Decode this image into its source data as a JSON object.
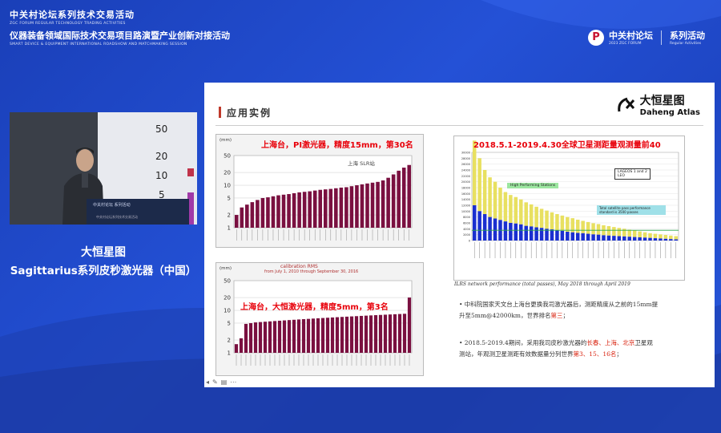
{
  "header": {
    "line1": "中关村论坛系列技术交易活动",
    "line1_en": "ZGC FORUM REGULAR TECHNOLOGY TRADING ACTIVITIES",
    "line2": "仪器装备领域国际技术交易项目路演暨产业创新对接活动",
    "line2_en": "SMART DEVICE & EQUIPMENT INTERNATIONAL ROADSHOW AND MATCHMAKING SESSION"
  },
  "brand": {
    "logo": "P",
    "name": "中关村论坛",
    "name_en": "2023 ZGC FORUM",
    "series": "系列活动",
    "series_en": "Regular Activities"
  },
  "video": {
    "wall_numbers": [
      "50",
      "20",
      "10",
      "5"
    ],
    "podium_text": "中关村论坛 系列活动",
    "podium_sub": "中关村论坛系列技术交易活动"
  },
  "captions": {
    "company": "大恒星图",
    "product": "Sagittarius系列皮秒激光器（中国）"
  },
  "slide": {
    "title": "应用实例",
    "logo_cn": "大恒星图",
    "logo_en": "Daheng Atlas",
    "chart1_title": "上海台，PI激光器，精度15mm，第30名",
    "chart1_annot": "上海 SLR站",
    "chart2_title": "上海台，大恒激光器，精度5mm，第3名",
    "chart2_sub1": "calibration RMS",
    "chart2_sub2": "from July 1, 2010 through September 30, 2016",
    "unit": "(mm)",
    "chart3_title": "2018.5.1-2019.4.30全球卫星测距量观测量前40",
    "chart3_legend1": "LAGEOS 1 and 2",
    "chart3_legend2": "LEO",
    "chart3_box1": "High Performing Stations",
    "chart3_box2": "Total satellite pass performance standard is 3500 passes",
    "chart3_caption": "ILRS network performance (total passes), May 2018 through April 2019",
    "bullet1_a": "• 中科院国家天文台上海台更换我司激光器后，测距精度从之前的15mm提",
    "bullet1_b": "升至5mm@42000km，世界排名",
    "bullet1_hl": "第三",
    "bullet1_end": "；",
    "bullet2_a": "• 2018.5-2019.4期间，采用我司皮秒激光器的",
    "bullet2_hl1": "长春、上海、北京",
    "bullet2_b": "卫星观",
    "bullet2_c": "测站，年观测卫星测距有效数据量分列世界",
    "bullet2_hl2": "第3、15、16名",
    "bullet2_end": "；"
  },
  "colors": {
    "bg": "#2451d6",
    "bar": "#7a1040",
    "accent_red": "#e8000a",
    "blue_bar": "#1a2fd0",
    "yellow_bar": "#e8e060"
  },
  "chart_data": [
    {
      "type": "bar",
      "title": "上海台，PI激光器，精度15mm，第30名",
      "ylabel": "(mm)",
      "yscale": "log",
      "ylim": [
        1,
        50
      ],
      "yticks": [
        "1",
        "2",
        "5",
        "10",
        "20",
        "50"
      ],
      "values": [
        2,
        3,
        3.5,
        4,
        4.5,
        5,
        5.2,
        5.5,
        5.8,
        6,
        6.2,
        6.5,
        6.8,
        7,
        7.2,
        7.5,
        7.8,
        8,
        8.2,
        8.5,
        8.8,
        9,
        9.5,
        10,
        10.5,
        11,
        11.5,
        12,
        13,
        15,
        18,
        22,
        26,
        30
      ]
    },
    {
      "type": "bar",
      "title": "上海台，大恒激光器，精度5mm，第3名",
      "ylabel": "(mm)",
      "yscale": "log",
      "ylim": [
        1,
        50
      ],
      "yticks": [
        "1",
        "2",
        "5",
        "10",
        "20",
        "50"
      ],
      "values": [
        1.6,
        2.2,
        4.8,
        5,
        5.2,
        5.3,
        5.4,
        5.5,
        5.6,
        5.7,
        5.8,
        5.9,
        6,
        6.1,
        6.2,
        6.3,
        6.4,
        6.5,
        6.6,
        6.7,
        6.8,
        6.9,
        7,
        7.1,
        7.2,
        7.3,
        7.4,
        7.5,
        7.6,
        7.7,
        7.8,
        7.9,
        8,
        8.1,
        8.2,
        8.3,
        20
      ]
    },
    {
      "type": "bar",
      "title": "2018.5.1-2019.4.30全球卫星测距量观测量前40",
      "series": [
        {
          "name": "LAGEOS 1 and 2",
          "values": [
            12000,
            10000,
            9000,
            8000,
            7500,
            7000,
            6500,
            6000,
            5800,
            5500,
            5000,
            4800,
            4500,
            4300,
            4000,
            3800,
            3500,
            3300,
            3000,
            2800,
            2600,
            2500,
            2300,
            2100,
            2000,
            1800,
            1700,
            1600,
            1500,
            1400,
            1300,
            1200,
            1100,
            1000,
            900,
            800,
            700,
            600,
            500,
            400
          ]
        },
        {
          "name": "LEO",
          "values": [
            22000,
            18000,
            15000,
            13500,
            12500,
            11000,
            10000,
            9500,
            9000,
            8500,
            8000,
            7500,
            7000,
            6500,
            6200,
            5800,
            5500,
            5200,
            5000,
            4800,
            4500,
            4200,
            4000,
            3800,
            3600,
            3400,
            3200,
            3000,
            2800,
            2600,
            2400,
            2200,
            2000,
            1800,
            1600,
            1500,
            1400,
            1300,
            1200,
            1100
          ]
        }
      ]
    }
  ]
}
